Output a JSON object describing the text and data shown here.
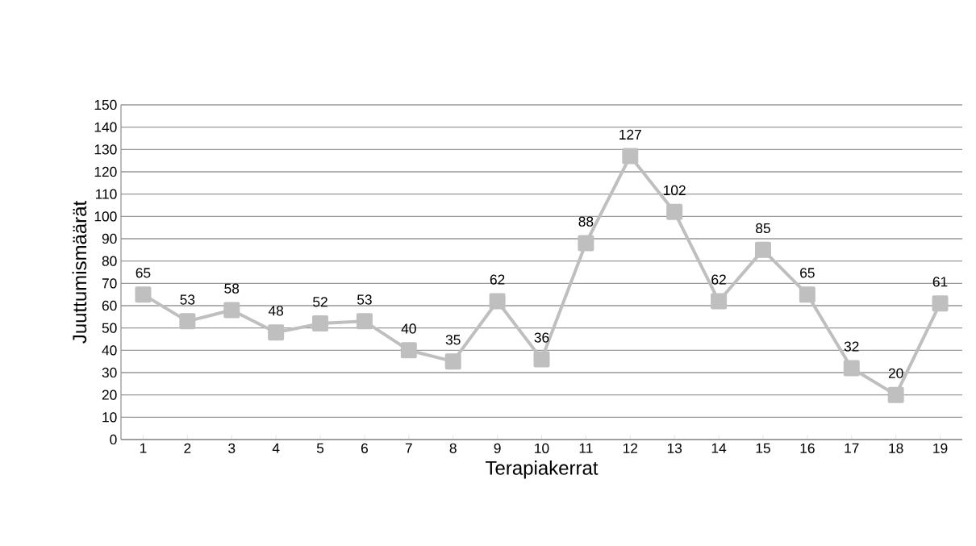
{
  "chart_data": {
    "type": "line",
    "xlabel": "Terapiakerrat",
    "ylabel": "Juuttumismäärät",
    "categories": [
      "1",
      "2",
      "3",
      "4",
      "5",
      "6",
      "7",
      "8",
      "9",
      "10",
      "11",
      "12",
      "13",
      "14",
      "15",
      "16",
      "17",
      "18",
      "19"
    ],
    "values": [
      65,
      53,
      58,
      48,
      52,
      53,
      40,
      35,
      62,
      36,
      88,
      127,
      102,
      62,
      85,
      65,
      32,
      20,
      61
    ],
    "color": "#bfbfbf",
    "marker": "square",
    "line_style": "solid",
    "data_labels": true,
    "grid": "y",
    "ylim": [
      0,
      150
    ],
    "yticks": [
      0,
      10,
      20,
      30,
      40,
      50,
      60,
      70,
      80,
      90,
      100,
      110,
      120,
      130,
      140,
      150
    ]
  }
}
